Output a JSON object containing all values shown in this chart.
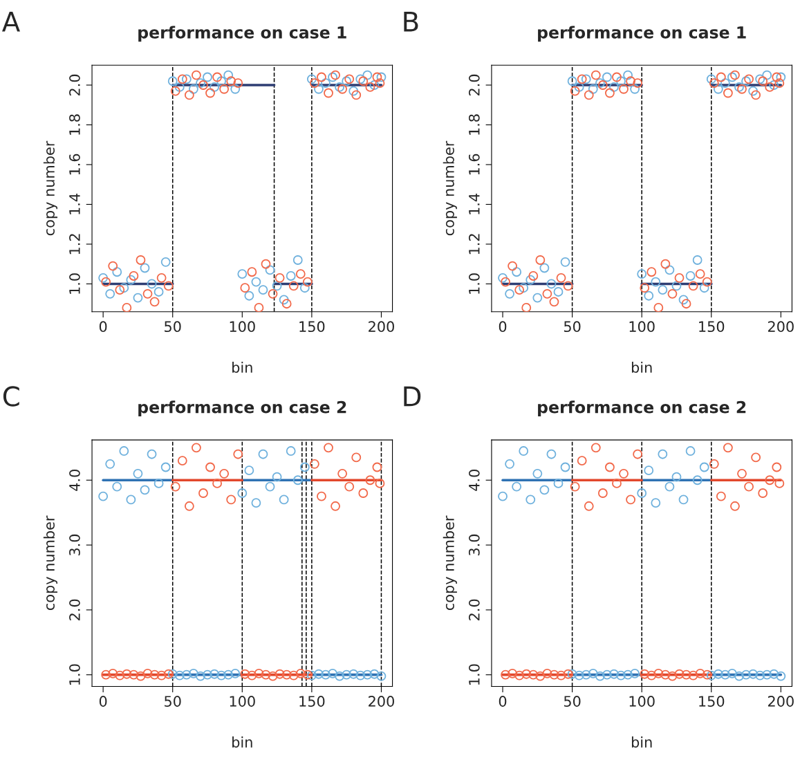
{
  "chart_data": [
    {
      "type": "scatter",
      "title": "performance on case 1",
      "xlabel": "bin",
      "ylabel": "copy number",
      "annotations": [
        "A"
      ],
      "xlim": [
        -8,
        208
      ],
      "xticks": [
        0,
        50,
        100,
        150,
        200
      ],
      "ylim": [
        0.86,
        2.1
      ],
      "yticks": [
        {
          "value": 1.0,
          "label": "1.0"
        },
        {
          "value": 1.2,
          "label": "1.2"
        },
        {
          "value": 1.4,
          "label": "1.4"
        },
        {
          "value": 1.6,
          "label": "1.6"
        },
        {
          "value": 1.8,
          "label": "1.8"
        },
        {
          "value": 2.0,
          "label": "2.0"
        }
      ],
      "grid": false,
      "legend": false,
      "marker": "circle",
      "ref_lines": [
        {
          "axis": "x",
          "value": 50,
          "color": "#000000",
          "line_style": "dashed"
        },
        {
          "axis": "x",
          "value": 123,
          "color": "#000000",
          "line_style": "dashed"
        },
        {
          "axis": "x",
          "value": 150,
          "color": "#000000",
          "line_style": "dashed"
        }
      ],
      "series": [
        {
          "type": "scatter",
          "color": "#6fb1dd",
          "x": [
            0,
            5,
            10,
            15,
            20,
            25,
            30,
            35,
            40,
            45,
            50,
            55,
            60,
            65,
            70,
            75,
            80,
            85,
            90,
            95,
            100,
            105,
            110,
            115,
            120,
            125,
            130,
            135,
            140,
            145,
            150,
            155,
            160,
            165,
            170,
            175,
            180,
            185,
            190,
            195,
            200
          ],
          "values": [
            1.03,
            0.95,
            1.06,
            0.98,
            1.02,
            0.93,
            1.08,
            1.0,
            0.96,
            1.11,
            2.02,
            1.99,
            2.03,
            1.98,
            2.01,
            2.04,
            1.99,
            2.02,
            2.05,
            1.98,
            1.05,
            0.94,
            1.01,
            0.97,
            1.07,
            0.99,
            0.92,
            1.04,
            1.12,
            0.98,
            2.03,
            1.98,
            2.01,
            2.04,
            1.99,
            2.02,
            1.97,
            2.03,
            2.05,
            2.0,
            2.04
          ]
        },
        {
          "type": "scatter",
          "color": "#f2694a",
          "x": [
            2,
            7,
            12,
            17,
            22,
            27,
            32,
            37,
            42,
            47,
            52,
            57,
            62,
            67,
            72,
            77,
            82,
            87,
            92,
            97,
            102,
            107,
            112,
            117,
            122,
            127,
            132,
            137,
            142,
            147,
            152,
            157,
            162,
            167,
            172,
            177,
            182,
            187,
            192,
            197,
            199
          ],
          "values": [
            1.01,
            1.09,
            0.97,
            0.88,
            1.04,
            1.12,
            0.95,
            0.91,
            1.03,
            0.99,
            1.97,
            2.03,
            1.95,
            2.05,
            2.0,
            1.96,
            2.04,
            1.98,
            2.02,
            2.01,
            0.98,
            1.06,
            0.88,
            1.1,
            0.95,
            1.03,
            0.9,
            0.99,
            1.05,
            1.01,
            2.01,
            2.04,
            1.96,
            2.05,
            1.98,
            2.03,
            1.95,
            2.02,
            1.99,
            2.04,
            2.01
          ]
        },
        {
          "type": "line",
          "marker": "none",
          "color": "#2e3d73",
          "x": [
            0,
            50
          ],
          "values": [
            1,
            1
          ]
        },
        {
          "type": "line",
          "marker": "none",
          "color": "#2e3d73",
          "x": [
            50,
            123
          ],
          "values": [
            2,
            2
          ]
        },
        {
          "type": "line",
          "marker": "none",
          "color": "#2e3d73",
          "x": [
            123,
            150
          ],
          "values": [
            1,
            1
          ]
        },
        {
          "type": "line",
          "marker": "none",
          "color": "#2e3d73",
          "x": [
            150,
            200
          ],
          "values": [
            2,
            2
          ]
        }
      ]
    },
    {
      "type": "scatter",
      "title": "performance on case 1",
      "xlabel": "bin",
      "ylabel": "copy number",
      "annotations": [
        "B"
      ],
      "xlim": [
        -8,
        208
      ],
      "xticks": [
        0,
        50,
        100,
        150,
        200
      ],
      "ylim": [
        0.86,
        2.1
      ],
      "yticks": [
        {
          "value": 1.0,
          "label": "1.0"
        },
        {
          "value": 1.2,
          "label": "1.2"
        },
        {
          "value": 1.4,
          "label": "1.4"
        },
        {
          "value": 1.6,
          "label": "1.6"
        },
        {
          "value": 1.8,
          "label": "1.8"
        },
        {
          "value": 2.0,
          "label": "2.0"
        }
      ],
      "grid": false,
      "legend": false,
      "marker": "circle",
      "ref_lines": [
        {
          "axis": "x",
          "value": 50,
          "color": "#000000",
          "line_style": "dashed"
        },
        {
          "axis": "x",
          "value": 100,
          "color": "#000000",
          "line_style": "dashed"
        },
        {
          "axis": "x",
          "value": 150,
          "color": "#000000",
          "line_style": "dashed"
        }
      ],
      "series": [
        {
          "type": "scatter",
          "color": "#6fb1dd",
          "x": [
            0,
            5,
            10,
            15,
            20,
            25,
            30,
            35,
            40,
            45,
            50,
            55,
            60,
            65,
            70,
            75,
            80,
            85,
            90,
            95,
            100,
            105,
            110,
            115,
            120,
            125,
            130,
            135,
            140,
            145,
            150,
            155,
            160,
            165,
            170,
            175,
            180,
            185,
            190,
            195,
            200
          ],
          "values": [
            1.03,
            0.95,
            1.06,
            0.98,
            1.02,
            0.93,
            1.08,
            1.0,
            0.96,
            1.11,
            2.02,
            1.99,
            2.03,
            1.98,
            2.01,
            2.04,
            1.99,
            2.02,
            2.05,
            1.98,
            1.05,
            0.94,
            1.01,
            0.97,
            1.07,
            0.99,
            0.92,
            1.04,
            1.12,
            0.98,
            2.03,
            1.98,
            2.01,
            2.04,
            1.99,
            2.02,
            1.97,
            2.03,
            2.05,
            2.0,
            2.04
          ]
        },
        {
          "type": "scatter",
          "color": "#f2694a",
          "x": [
            2,
            7,
            12,
            17,
            22,
            27,
            32,
            37,
            42,
            47,
            52,
            57,
            62,
            67,
            72,
            77,
            82,
            87,
            92,
            97,
            102,
            107,
            112,
            117,
            122,
            127,
            132,
            137,
            142,
            147,
            152,
            157,
            162,
            167,
            172,
            177,
            182,
            187,
            192,
            197,
            199
          ],
          "values": [
            1.01,
            1.09,
            0.97,
            0.88,
            1.04,
            1.12,
            0.95,
            0.91,
            1.03,
            0.99,
            1.97,
            2.03,
            1.95,
            2.05,
            2.0,
            1.96,
            2.04,
            1.98,
            2.02,
            2.01,
            0.98,
            1.06,
            0.88,
            1.1,
            0.95,
            1.03,
            0.9,
            0.99,
            1.05,
            1.01,
            2.01,
            2.04,
            1.96,
            2.05,
            1.98,
            2.03,
            1.95,
            2.02,
            1.99,
            2.04,
            2.01
          ]
        },
        {
          "type": "line",
          "marker": "none",
          "color": "#2e3d73",
          "x": [
            0,
            50
          ],
          "values": [
            1,
            1
          ]
        },
        {
          "type": "line",
          "marker": "none",
          "color": "#2e3d73",
          "x": [
            50,
            100
          ],
          "values": [
            2,
            2
          ]
        },
        {
          "type": "line",
          "marker": "none",
          "color": "#2e3d73",
          "x": [
            100,
            150
          ],
          "values": [
            1,
            1
          ]
        },
        {
          "type": "line",
          "marker": "none",
          "color": "#2e3d73",
          "x": [
            150,
            200
          ],
          "values": [
            2,
            2
          ]
        }
      ]
    },
    {
      "type": "scatter",
      "title": "performance on case 2",
      "xlabel": "bin",
      "ylabel": "copy number",
      "annotations": [
        "C"
      ],
      "xlim": [
        -8,
        208
      ],
      "xticks": [
        0,
        50,
        100,
        150,
        200
      ],
      "ylim": [
        0.82,
        4.62
      ],
      "yticks": [
        {
          "value": 1.0,
          "label": "1.0"
        },
        {
          "value": 2.0,
          "label": "2.0"
        },
        {
          "value": 3.0,
          "label": "3.0"
        },
        {
          "value": 4.0,
          "label": "4.0"
        }
      ],
      "grid": false,
      "legend": false,
      "marker": "circle",
      "ref_lines": [
        {
          "axis": "x",
          "value": 50,
          "color": "#000000",
          "line_style": "dashed"
        },
        {
          "axis": "x",
          "value": 100,
          "color": "#000000",
          "line_style": "dashed"
        },
        {
          "axis": "x",
          "value": 143,
          "color": "#000000",
          "line_style": "dashed"
        },
        {
          "axis": "x",
          "value": 146,
          "color": "#000000",
          "line_style": "dashed"
        },
        {
          "axis": "x",
          "value": 150,
          "color": "#000000",
          "line_style": "dashed"
        },
        {
          "axis": "x",
          "value": 200,
          "color": "#000000",
          "line_style": "dashed"
        }
      ],
      "series": [
        {
          "type": "scatter",
          "color": "#6fb1dd",
          "x": [
            0,
            5,
            10,
            15,
            20,
            25,
            30,
            35,
            40,
            45,
            50,
            55,
            60,
            65,
            70,
            75,
            80,
            85,
            90,
            95,
            100,
            105,
            110,
            115,
            120,
            125,
            130,
            135,
            140,
            145,
            150,
            155,
            160,
            165,
            170,
            175,
            180,
            185,
            190,
            195,
            200
          ],
          "values": [
            3.75,
            4.25,
            3.9,
            4.45,
            3.7,
            4.1,
            3.85,
            4.4,
            3.95,
            4.2,
            1.01,
            0.99,
            1.0,
            1.02,
            0.98,
            1.0,
            1.01,
            0.99,
            1.0,
            1.02,
            3.8,
            4.15,
            3.65,
            4.4,
            3.9,
            4.05,
            3.7,
            4.45,
            4.0,
            4.2,
            0.99,
            1.01,
            1.0,
            1.02,
            0.98,
            1.0,
            1.01,
            0.99,
            1.0,
            1.01,
            0.98
          ]
        },
        {
          "type": "scatter",
          "color": "#f2694a",
          "x": [
            2,
            7,
            12,
            17,
            22,
            27,
            32,
            37,
            42,
            47,
            52,
            57,
            62,
            67,
            72,
            77,
            82,
            87,
            92,
            97,
            102,
            107,
            112,
            117,
            122,
            127,
            132,
            137,
            142,
            147,
            152,
            157,
            162,
            167,
            172,
            177,
            182,
            187,
            192,
            197,
            199
          ],
          "values": [
            1.0,
            1.02,
            0.99,
            1.01,
            1.0,
            0.98,
            1.02,
            1.0,
            0.99,
            1.01,
            3.9,
            4.3,
            3.6,
            4.5,
            3.8,
            4.2,
            3.95,
            4.1,
            3.7,
            4.4,
            1.01,
            0.99,
            1.02,
            1.0,
            0.98,
            1.01,
            1.0,
            0.99,
            1.02,
            1.0,
            4.25,
            3.75,
            4.5,
            3.6,
            4.1,
            3.9,
            4.35,
            3.8,
            4.0,
            4.2,
            3.95
          ]
        },
        {
          "type": "line",
          "marker": "none",
          "color": "#2f72b3",
          "x": [
            0,
            50
          ],
          "values": [
            4,
            4
          ]
        },
        {
          "type": "line",
          "marker": "none",
          "color": "#2f72b3",
          "x": [
            50,
            100
          ],
          "values": [
            1,
            1
          ]
        },
        {
          "type": "line",
          "marker": "none",
          "color": "#2f72b3",
          "x": [
            100,
            150
          ],
          "values": [
            4,
            4
          ]
        },
        {
          "type": "line",
          "marker": "none",
          "color": "#2f72b3",
          "x": [
            150,
            200
          ],
          "values": [
            1,
            1
          ]
        },
        {
          "type": "line",
          "marker": "none",
          "color": "#e2472c",
          "x": [
            0,
            50
          ],
          "values": [
            1,
            1
          ]
        },
        {
          "type": "line",
          "marker": "none",
          "color": "#e2472c",
          "x": [
            50,
            100
          ],
          "values": [
            4,
            4
          ]
        },
        {
          "type": "line",
          "marker": "none",
          "color": "#e2472c",
          "x": [
            100,
            150
          ],
          "values": [
            1,
            1
          ]
        },
        {
          "type": "line",
          "marker": "none",
          "color": "#e2472c",
          "x": [
            150,
            200
          ],
          "values": [
            4,
            4
          ]
        }
      ]
    },
    {
      "type": "scatter",
      "title": "performance on case 2",
      "xlabel": "bin",
      "ylabel": "copy number",
      "annotations": [
        "D"
      ],
      "xlim": [
        -8,
        208
      ],
      "xticks": [
        0,
        50,
        100,
        150,
        200
      ],
      "ylim": [
        0.82,
        4.62
      ],
      "yticks": [
        {
          "value": 1.0,
          "label": "1.0"
        },
        {
          "value": 2.0,
          "label": "2.0"
        },
        {
          "value": 3.0,
          "label": "3.0"
        },
        {
          "value": 4.0,
          "label": "4.0"
        }
      ],
      "grid": false,
      "legend": false,
      "marker": "circle",
      "ref_lines": [
        {
          "axis": "x",
          "value": 50,
          "color": "#000000",
          "line_style": "dashed"
        },
        {
          "axis": "x",
          "value": 100,
          "color": "#000000",
          "line_style": "dashed"
        },
        {
          "axis": "x",
          "value": 150,
          "color": "#000000",
          "line_style": "dashed"
        }
      ],
      "series": [
        {
          "type": "scatter",
          "color": "#6fb1dd",
          "x": [
            0,
            5,
            10,
            15,
            20,
            25,
            30,
            35,
            40,
            45,
            50,
            55,
            60,
            65,
            70,
            75,
            80,
            85,
            90,
            95,
            100,
            105,
            110,
            115,
            120,
            125,
            130,
            135,
            140,
            145,
            150,
            155,
            160,
            165,
            170,
            175,
            180,
            185,
            190,
            195,
            200
          ],
          "values": [
            3.75,
            4.25,
            3.9,
            4.45,
            3.7,
            4.1,
            3.85,
            4.4,
            3.95,
            4.2,
            1.01,
            0.99,
            1.0,
            1.02,
            0.98,
            1.0,
            1.01,
            0.99,
            1.0,
            1.02,
            3.8,
            4.15,
            3.65,
            4.4,
            3.9,
            4.05,
            3.7,
            4.45,
            4.0,
            4.2,
            0.99,
            1.01,
            1.0,
            1.02,
            0.98,
            1.0,
            1.01,
            0.99,
            1.0,
            1.01,
            0.98
          ]
        },
        {
          "type": "scatter",
          "color": "#f2694a",
          "x": [
            2,
            7,
            12,
            17,
            22,
            27,
            32,
            37,
            42,
            47,
            52,
            57,
            62,
            67,
            72,
            77,
            82,
            87,
            92,
            97,
            102,
            107,
            112,
            117,
            122,
            127,
            132,
            137,
            142,
            147,
            152,
            157,
            162,
            167,
            172,
            177,
            182,
            187,
            192,
            197,
            199
          ],
          "values": [
            1.0,
            1.02,
            0.99,
            1.01,
            1.0,
            0.98,
            1.02,
            1.0,
            0.99,
            1.01,
            3.9,
            4.3,
            3.6,
            4.5,
            3.8,
            4.2,
            3.95,
            4.1,
            3.7,
            4.4,
            1.01,
            0.99,
            1.02,
            1.0,
            0.98,
            1.01,
            1.0,
            0.99,
            1.02,
            1.0,
            4.25,
            3.75,
            4.5,
            3.6,
            4.1,
            3.9,
            4.35,
            3.8,
            4.0,
            4.2,
            3.95
          ]
        },
        {
          "type": "line",
          "marker": "none",
          "color": "#2f72b3",
          "x": [
            0,
            50
          ],
          "values": [
            4,
            4
          ]
        },
        {
          "type": "line",
          "marker": "none",
          "color": "#2f72b3",
          "x": [
            50,
            100
          ],
          "values": [
            1,
            1
          ]
        },
        {
          "type": "line",
          "marker": "none",
          "color": "#2f72b3",
          "x": [
            100,
            150
          ],
          "values": [
            4,
            4
          ]
        },
        {
          "type": "line",
          "marker": "none",
          "color": "#2f72b3",
          "x": [
            150,
            200
          ],
          "values": [
            1,
            1
          ]
        },
        {
          "type": "line",
          "marker": "none",
          "color": "#e2472c",
          "x": [
            0,
            50
          ],
          "values": [
            1,
            1
          ]
        },
        {
          "type": "line",
          "marker": "none",
          "color": "#e2472c",
          "x": [
            50,
            100
          ],
          "values": [
            4,
            4
          ]
        },
        {
          "type": "line",
          "marker": "none",
          "color": "#e2472c",
          "x": [
            100,
            150
          ],
          "values": [
            1,
            1
          ]
        },
        {
          "type": "line",
          "marker": "none",
          "color": "#e2472c",
          "x": [
            150,
            200
          ],
          "values": [
            4,
            4
          ]
        }
      ]
    }
  ]
}
